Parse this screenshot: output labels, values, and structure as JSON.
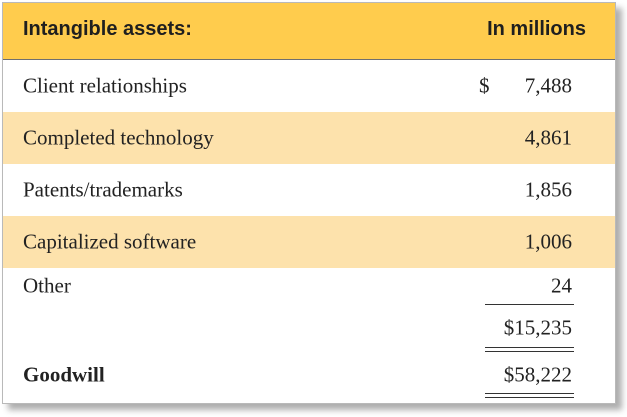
{
  "table": {
    "header": {
      "label": "Intangible assets:",
      "unit": "In millions"
    },
    "rows": [
      {
        "label": "Client relationships",
        "currency": "$",
        "amount": "7,488"
      },
      {
        "label": "Completed technology",
        "currency": "",
        "amount": "4,861"
      },
      {
        "label": "Patents/trademarks",
        "currency": "",
        "amount": "1,856"
      },
      {
        "label": "Capitalized software",
        "currency": "",
        "amount": "1,006"
      },
      {
        "label": "Other",
        "currency": "",
        "amount": "24"
      }
    ],
    "subtotal": {
      "amount": "$15,235"
    },
    "goodwill": {
      "label": "Goodwill",
      "amount": "$58,222"
    }
  }
}
